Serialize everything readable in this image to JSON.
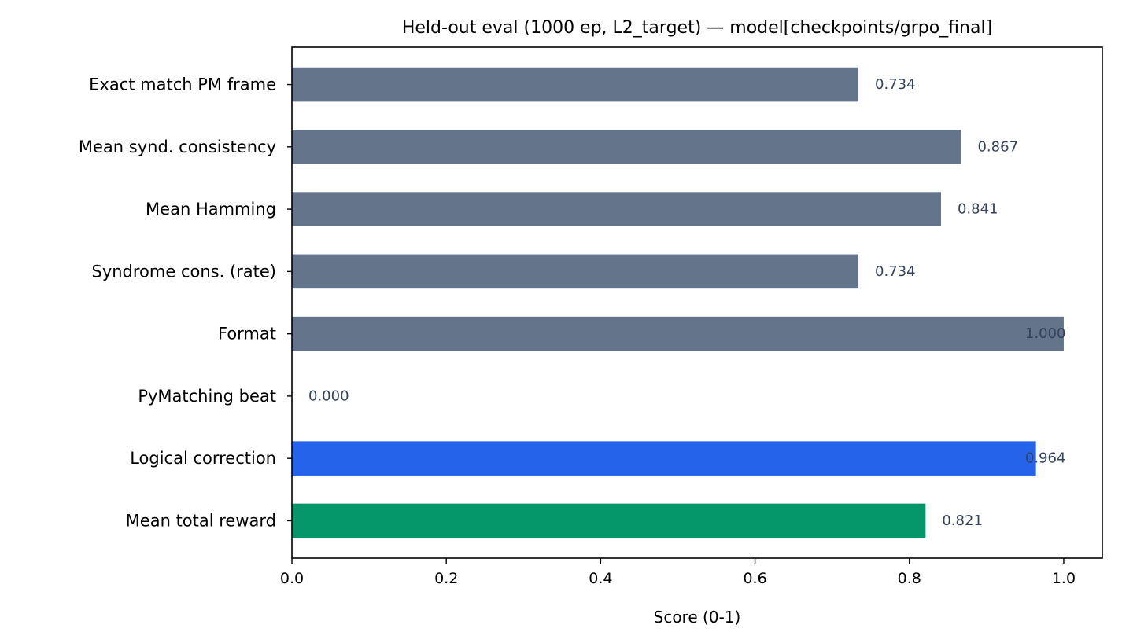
{
  "chart_data": {
    "type": "bar",
    "orientation": "horizontal",
    "title": "Held-out eval (1000 ep, L2_target) — model[checkpoints/grpo_final]",
    "xlabel": "Score (0-1)",
    "ylabel": "",
    "xlim": [
      0,
      1.05
    ],
    "xticks": [
      0.0,
      0.2,
      0.4,
      0.6,
      0.8,
      1.0
    ],
    "xtick_labels": [
      "0.0",
      "0.2",
      "0.4",
      "0.6",
      "0.8",
      "1.0"
    ],
    "grid": false,
    "categories": [
      "Exact match PM frame",
      "Mean synd. consistency",
      "Mean Hamming",
      "Syndrome cons. (rate)",
      "Format",
      "PyMatching beat",
      "Logical correction",
      "Mean total reward"
    ],
    "values": [
      0.734,
      0.867,
      0.841,
      0.734,
      1.0,
      0.0,
      0.964,
      0.821
    ],
    "value_labels": [
      "0.734",
      "0.867",
      "0.841",
      "0.734",
      "1.000",
      "0.000",
      "0.964",
      "0.821"
    ],
    "colors": [
      "#64748b",
      "#64748b",
      "#64748b",
      "#64748b",
      "#64748b",
      "#64748b",
      "#2563eb",
      "#059669"
    ],
    "label_color": "#33415c"
  }
}
